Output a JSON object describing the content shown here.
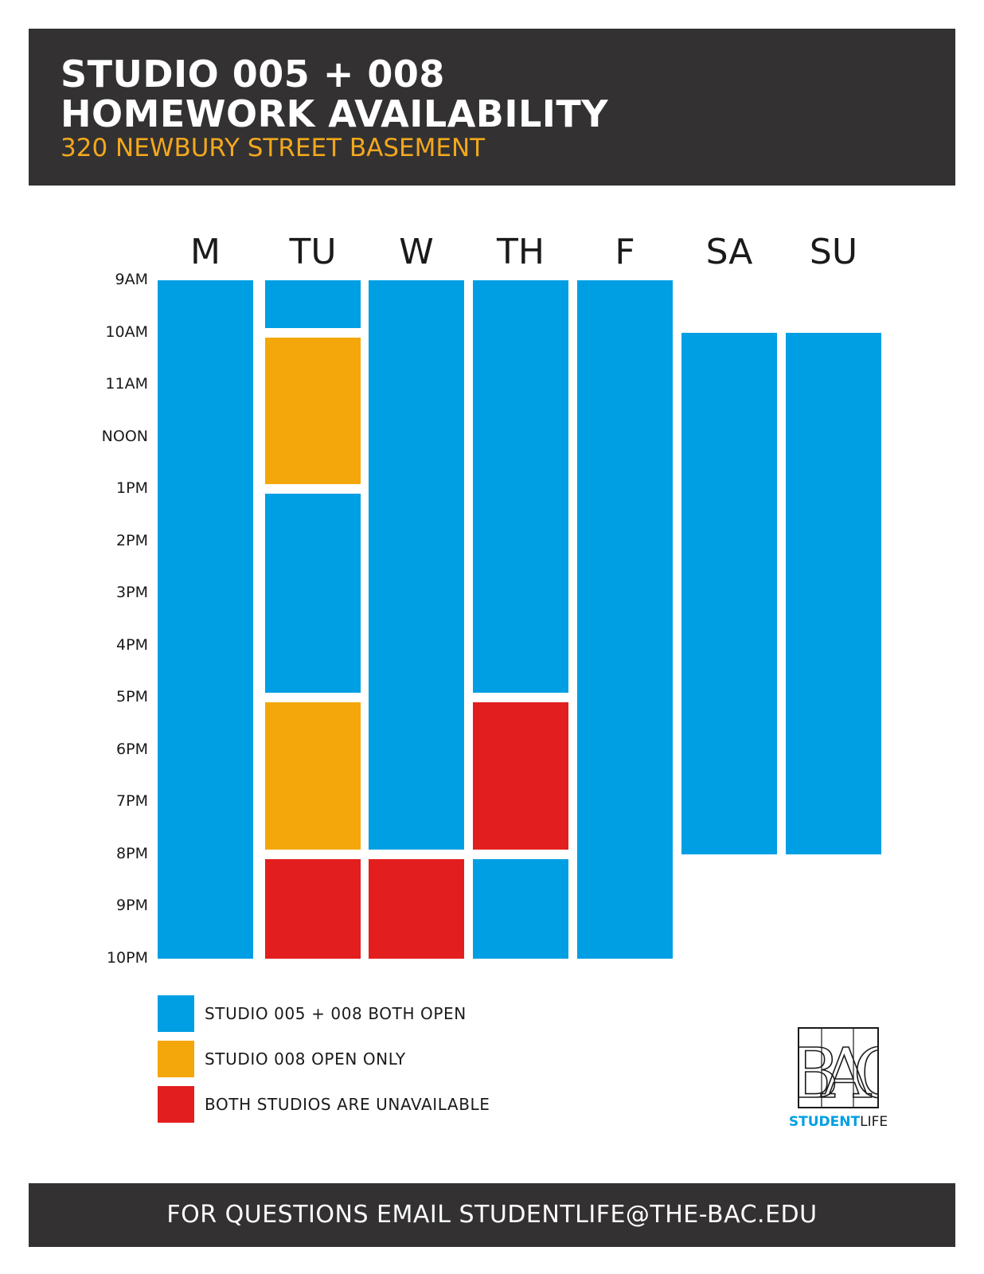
{
  "header": {
    "title_line1": "STUDIO 005 + 008",
    "title_line2": "HOMEWORK AVAILABILITY",
    "subtitle": "320 NEWBURY STREET BASEMENT"
  },
  "colors": {
    "header_bg": "#333132",
    "subtitle": "#f2a81d",
    "both_open": "#009fe3",
    "studio_008_only": "#f4a70a",
    "unavailable": "#e21e1e"
  },
  "schedule": {
    "days": [
      "M",
      "TU",
      "W",
      "TH",
      "F",
      "SA",
      "SU"
    ],
    "times": [
      "9AM",
      "10AM",
      "11AM",
      "NOON",
      "1PM",
      "2PM",
      "3PM",
      "4PM",
      "5PM",
      "6PM",
      "7PM",
      "8PM",
      "9PM",
      "10PM"
    ],
    "start_hour": 9,
    "end_hour": 22,
    "blocks": [
      {
        "day": "M",
        "start": 9,
        "end": 22,
        "status": "both_open"
      },
      {
        "day": "TU",
        "start": 9,
        "end": 10,
        "status": "both_open"
      },
      {
        "day": "TU",
        "start": 10,
        "end": 13,
        "status": "studio_008_only"
      },
      {
        "day": "TU",
        "start": 13,
        "end": 17,
        "status": "both_open"
      },
      {
        "day": "TU",
        "start": 17,
        "end": 20,
        "status": "studio_008_only"
      },
      {
        "day": "TU",
        "start": 20,
        "end": 22,
        "status": "unavailable"
      },
      {
        "day": "W",
        "start": 9,
        "end": 20,
        "status": "both_open"
      },
      {
        "day": "W",
        "start": 20,
        "end": 22,
        "status": "unavailable"
      },
      {
        "day": "TH",
        "start": 9,
        "end": 17,
        "status": "both_open"
      },
      {
        "day": "TH",
        "start": 17,
        "end": 20,
        "status": "unavailable"
      },
      {
        "day": "TH",
        "start": 20,
        "end": 22,
        "status": "both_open"
      },
      {
        "day": "F",
        "start": 9,
        "end": 22,
        "status": "both_open"
      },
      {
        "day": "SA",
        "start": 10,
        "end": 20,
        "status": "both_open"
      },
      {
        "day": "SU",
        "start": 10,
        "end": 20,
        "status": "both_open"
      }
    ]
  },
  "legend": [
    {
      "label": "STUDIO 005 + 008 BOTH OPEN",
      "status": "both_open"
    },
    {
      "label": "STUDIO 008 OPEN ONLY",
      "status": "studio_008_only"
    },
    {
      "label": "BOTH STUDIOS ARE UNAVAILABLE",
      "status": "unavailable"
    }
  ],
  "logo": {
    "mark": "BAC",
    "text_bold": "STUDENT",
    "text_light": "LIFE"
  },
  "footer": {
    "text": "FOR QUESTIONS EMAIL STUDENTLIFE@THE-BAC.EDU"
  }
}
